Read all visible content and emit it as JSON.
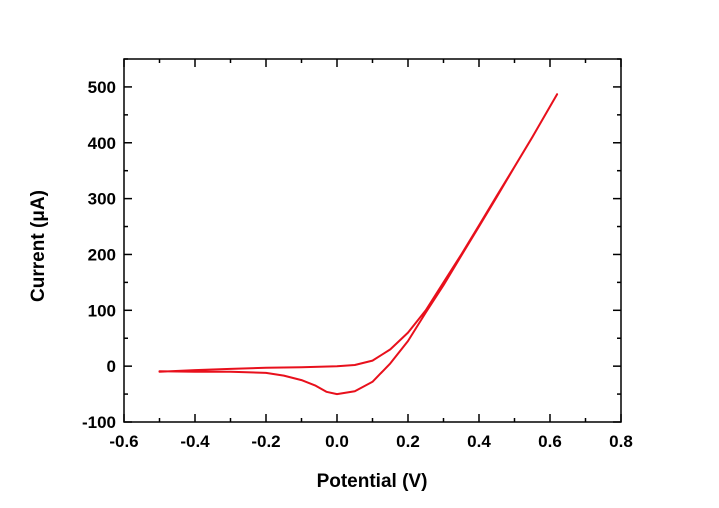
{
  "chart_data": {
    "type": "line",
    "xlabel": "Potential (V)",
    "ylabel": "Current (μA)",
    "xlim": [
      -0.6,
      0.8
    ],
    "ylim": [
      -100,
      550
    ],
    "x_ticks": [
      -0.6,
      -0.4,
      -0.2,
      0.0,
      0.2,
      0.4,
      0.6,
      0.8
    ],
    "x_tick_labels": [
      "-0.6",
      "-0.4",
      "-0.2",
      "0.0",
      "0.2",
      "0.4",
      "0.6",
      "0.8"
    ],
    "y_ticks": [
      -100,
      0,
      100,
      200,
      300,
      400,
      500
    ],
    "y_tick_labels": [
      "-100",
      "0",
      "100",
      "200",
      "300",
      "400",
      "500"
    ],
    "x_minor_step": 0.1,
    "y_minor_step": 50,
    "grid": false,
    "legend": "none",
    "series_color": "#e8101c",
    "series": [
      {
        "x": [
          -0.5,
          -0.4,
          -0.3,
          -0.2,
          -0.1,
          0.0,
          0.05,
          0.1,
          0.15,
          0.2,
          0.25,
          0.3,
          0.35,
          0.4,
          0.45,
          0.5,
          0.55,
          0.6,
          0.62,
          0.55,
          0.5,
          0.45,
          0.4,
          0.35,
          0.3,
          0.25,
          0.2,
          0.15,
          0.1,
          0.05,
          0.0,
          -0.03,
          -0.06,
          -0.1,
          -0.15,
          -0.2,
          -0.3,
          -0.4,
          -0.5
        ],
        "y": [
          -10,
          -7,
          -5,
          -3,
          -2,
          0,
          2,
          10,
          30,
          60,
          100,
          150,
          200,
          252,
          305,
          357,
          410,
          465,
          487,
          410,
          357,
          303,
          250,
          198,
          145,
          96,
          45,
          5,
          -28,
          -45,
          -50,
          -46,
          -35,
          -25,
          -17,
          -12,
          -10,
          -10,
          -9
        ]
      }
    ]
  }
}
